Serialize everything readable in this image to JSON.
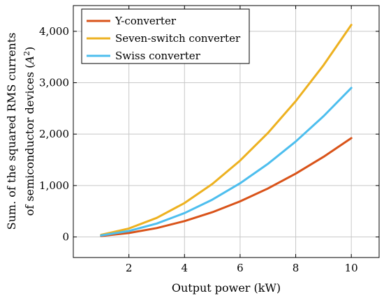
{
  "chart_data": {
    "type": "line",
    "xlabel": "Output power (kW)",
    "ylabel_line1": "Sum. of the squared RMS currents",
    "ylabel_line2_prefix": "of semiconductor devices (",
    "ylabel_unit_base": "A",
    "ylabel_unit_exp": "2",
    "ylabel_line2_suffix": ")",
    "xlim": [
      0,
      11
    ],
    "ylim": [
      -400,
      4500
    ],
    "xticks": [
      2,
      4,
      6,
      8,
      10
    ],
    "xtick_labels": [
      "2",
      "4",
      "6",
      "8",
      "10"
    ],
    "yticks": [
      0,
      1000,
      2000,
      3000,
      4000
    ],
    "ytick_labels": [
      "0",
      "1,000",
      "2,000",
      "3,000",
      "4,000"
    ],
    "grid": true,
    "legend_position": "top-left",
    "x": [
      1,
      2,
      3,
      4,
      5,
      6,
      7,
      8,
      9,
      10
    ],
    "series": [
      {
        "name": "Y-converter",
        "color": "#d95319",
        "values": [
          19,
          77,
          173,
          308,
          481,
          692,
          942,
          1231,
          1558,
          1923
        ]
      },
      {
        "name": "Seven-switch converter",
        "color": "#edb120",
        "values": [
          41,
          165,
          371,
          660,
          1031,
          1485,
          2021,
          2640,
          3341,
          4125
        ]
      },
      {
        "name": "Swiss converter",
        "color": "#4dbeee",
        "values": [
          29,
          116,
          261,
          464,
          725,
          1044,
          1421,
          1856,
          2349,
          2900
        ]
      }
    ]
  }
}
